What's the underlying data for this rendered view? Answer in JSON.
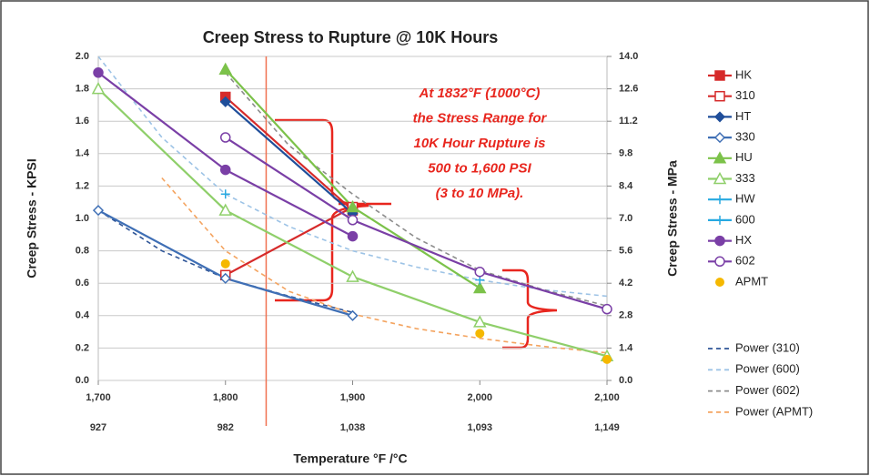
{
  "chart_data": {
    "type": "line",
    "title": "Creep Stress to Rupture @ 10K Hours",
    "x_label": "Temperature °F /°C",
    "y_label": "Creep Stress - KPSI",
    "y2_label": "Creep Stress - MPa",
    "xlim": [
      1700,
      2100
    ],
    "xticks": [
      {
        "value": 1700,
        "label": "1,700"
      },
      {
        "value": 1800,
        "label": "1,800"
      },
      {
        "value": 1900,
        "label": "1,900"
      },
      {
        "value": 2000,
        "label": "2,000"
      },
      {
        "value": 2100,
        "label": "2,100"
      }
    ],
    "x2ticks": [
      {
        "value": 1700,
        "label": "927"
      },
      {
        "value": 1800,
        "label": "982"
      },
      {
        "value": 1900,
        "label": "1,038"
      },
      {
        "value": 2000,
        "label": "1,093"
      },
      {
        "value": 2100,
        "label": "1,149"
      }
    ],
    "ylim": [
      0,
      2
    ],
    "yticks": [
      {
        "value": 0,
        "label": "0.0"
      },
      0.2,
      0.4,
      0.6,
      0.8,
      {
        "value": 1,
        "label": "1.0"
      },
      1.2,
      1.4,
      1.6,
      1.8,
      {
        "value": 2,
        "label": "2.0"
      }
    ],
    "y2lim": [
      0,
      14
    ],
    "y2ticks": [
      {
        "value": 0,
        "label": "0.0"
      },
      1.4,
      2.8,
      4.2,
      5.6,
      {
        "value": 7,
        "label": "7.0"
      },
      8.4,
      9.8,
      11.2,
      12.6,
      {
        "value": 14,
        "label": "14.0"
      }
    ],
    "grid": true,
    "legend": "right",
    "x": [
      1700,
      1800,
      1900,
      2000,
      2100
    ],
    "vline": 1832,
    "vline_color": "#f07050",
    "annotation": [
      "At 1832°F (1000°C)",
      "the Stress Range for",
      "10K Hour Rupture is",
      "500 to 1,600 PSI",
      "(3 to 10 MPa)."
    ],
    "series": [
      {
        "name": "HK",
        "color": "#d62a2a",
        "marker": "square",
        "values": [
          null,
          1.75,
          1.05,
          null,
          null
        ]
      },
      {
        "name": "310",
        "color": "#d62a2a",
        "marker": "square-open",
        "values": [
          null,
          0.65,
          1.07,
          null,
          null
        ]
      },
      {
        "name": "HT",
        "color": "#1f4e9a",
        "marker": "diamond",
        "values": [
          null,
          1.72,
          1.03,
          null,
          null
        ]
      },
      {
        "name": "330",
        "color": "#3f6fb5",
        "marker": "diamond-open",
        "values": [
          1.05,
          0.63,
          0.4,
          null,
          null
        ]
      },
      {
        "name": "HU",
        "color": "#7cc24a",
        "marker": "triangle",
        "values": [
          null,
          1.92,
          1.07,
          0.57,
          null
        ]
      },
      {
        "name": "333",
        "color": "#8fcf6a",
        "marker": "triangle-open",
        "values": [
          1.8,
          1.05,
          0.64,
          0.36,
          0.15
        ]
      },
      {
        "name": "HW",
        "color": "#27a9e1",
        "marker": "plus",
        "values": [
          null,
          1.15,
          null,
          null,
          null
        ]
      },
      {
        "name": "600",
        "color": "#27a9e1",
        "marker": "plus",
        "values": [
          null,
          null,
          null,
          0.62,
          null
        ]
      },
      {
        "name": "HX",
        "color": "#7a3fa6",
        "marker": "circle",
        "values": [
          1.9,
          1.3,
          0.89,
          null,
          null
        ]
      },
      {
        "name": "602",
        "color": "#7a3fa6",
        "marker": "circle-open",
        "values": [
          null,
          1.5,
          0.99,
          0.67,
          0.44
        ]
      },
      {
        "name": "APMT",
        "color": "#f5b800",
        "marker": "dot",
        "values": [
          null,
          0.72,
          null,
          0.29,
          0.13
        ]
      }
    ],
    "trend_x": [
      1700,
      1750,
      1800,
      1850,
      1900,
      1950,
      2000,
      2050,
      2100
    ],
    "trends": [
      {
        "name": "Power (310)",
        "color": "#2f5597",
        "values": [
          1.05,
          0.8,
          0.63,
          0.52,
          0.42,
          null,
          null,
          null,
          null
        ]
      },
      {
        "name": "Power (600)",
        "color": "#9dc3e6",
        "values": [
          2.0,
          1.5,
          1.15,
          0.95,
          0.8,
          0.7,
          0.62,
          0.56,
          0.52
        ]
      },
      {
        "name": "Power (602)",
        "color": "#8c8c8c",
        "values": [
          null,
          null,
          1.9,
          1.45,
          1.15,
          0.88,
          0.68,
          0.56,
          0.46
        ]
      },
      {
        "name": "Power (APMT)",
        "color": "#f4a460",
        "values": [
          null,
          1.25,
          0.8,
          0.55,
          0.41,
          0.32,
          0.26,
          0.21,
          0.17
        ]
      }
    ]
  }
}
